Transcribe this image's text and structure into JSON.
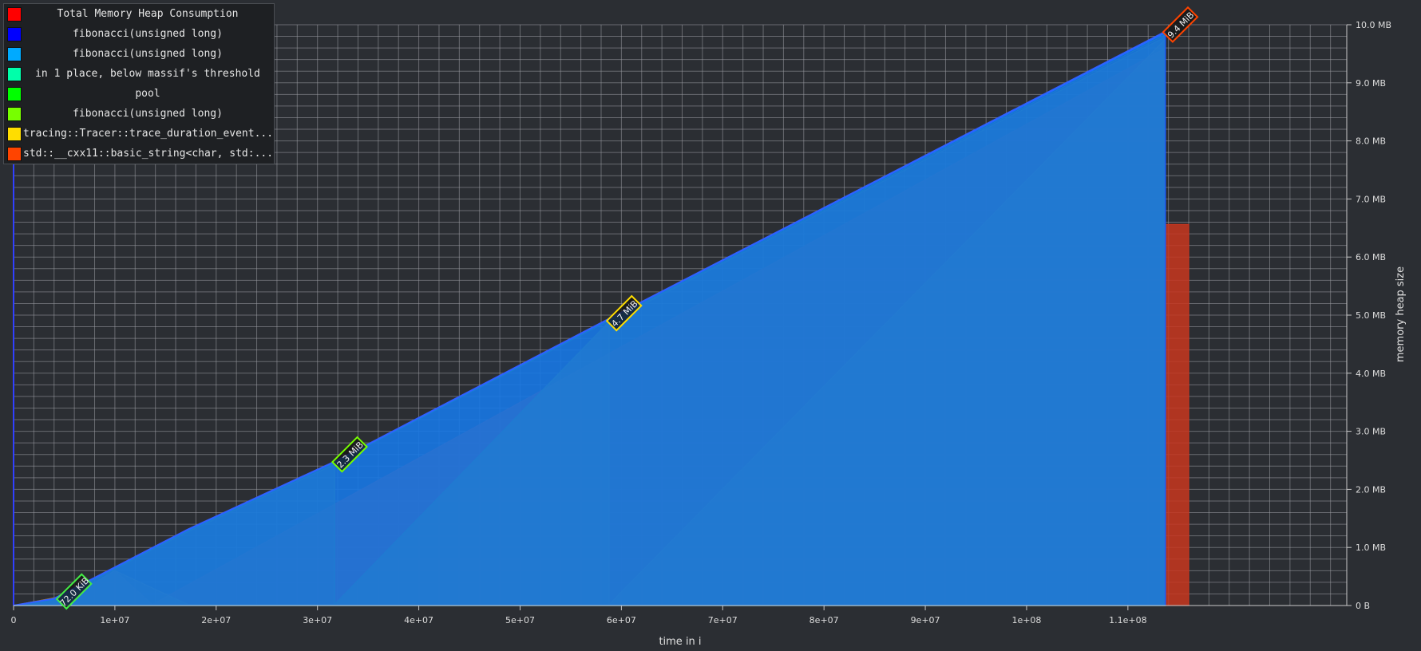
{
  "chart_data": {
    "type": "area",
    "xlabel": "time in i",
    "ylabel": "memory heap size",
    "xlim": [
      0,
      115000000
    ],
    "ylim": [
      0,
      10
    ],
    "x_ticks": [
      {
        "value": 0,
        "label": "0"
      },
      {
        "value": 10000000,
        "label": "1e+07"
      },
      {
        "value": 20000000,
        "label": "2e+07"
      },
      {
        "value": 30000000,
        "label": "3e+07"
      },
      {
        "value": 40000000,
        "label": "4e+07"
      },
      {
        "value": 50000000,
        "label": "5e+07"
      },
      {
        "value": 60000000,
        "label": "6e+07"
      },
      {
        "value": 70000000,
        "label": "7e+07"
      },
      {
        "value": 80000000,
        "label": "8e+07"
      },
      {
        "value": 90000000,
        "label": "9e+07"
      },
      {
        "value": 100000000,
        "label": "1e+08"
      },
      {
        "value": 110000000,
        "label": "1.1e+08"
      }
    ],
    "y_ticks": [
      {
        "value": 0,
        "label": "0 B"
      },
      {
        "value": 1,
        "label": "1.0 MB"
      },
      {
        "value": 2,
        "label": "2.0 MB"
      },
      {
        "value": 3,
        "label": "3.0 MB"
      },
      {
        "value": 4,
        "label": "4.0 MB"
      },
      {
        "value": 5,
        "label": "5.0 MB"
      },
      {
        "value": 6,
        "label": "6.0 MB"
      },
      {
        "value": 7,
        "label": "7.0 MB"
      },
      {
        "value": 8,
        "label": "8.0 MB"
      },
      {
        "value": 9,
        "label": "9.0 MB"
      },
      {
        "value": 10,
        "label": "10.0 MB"
      }
    ],
    "grid": true,
    "legend_position": "top-left",
    "legend": [
      {
        "label": "Total Memory Heap Consumption",
        "color": "#ff0000"
      },
      {
        "label": "fibonacci(unsigned long)",
        "color": "#0000ff"
      },
      {
        "label": "fibonacci(unsigned long)",
        "color": "#00aaff"
      },
      {
        "label": "in 1 place, below massif's threshold",
        "color": "#00ffaa"
      },
      {
        "label": "pool",
        "color": "#00ff00"
      },
      {
        "label": "fibonacci(unsigned long)",
        "color": "#77ff00"
      },
      {
        "label": "tracing::Tracer::trace_duration_event...",
        "color": "#ffdd00"
      },
      {
        "label": "std::__cxx11::basic_string<char, std:...",
        "color": "#ff4400"
      }
    ],
    "layers": [
      {
        "name": "std::__cxx11::basic_string<char, std:...",
        "color": "#c8361f",
        "points": [
          [
            0,
            0
          ],
          [
            6100000,
            0.2
          ],
          [
            10000000,
            0.6
          ],
          [
            13700000,
            0.02
          ],
          [
            113700000,
            9.6
          ],
          [
            113700000,
            6.56
          ],
          [
            116000000,
            6.56
          ]
        ]
      },
      {
        "name": "tracing::Tracer::trace_duration_event...",
        "color": "#b58a12",
        "points": [
          [
            0,
            0
          ],
          [
            6100000,
            0.2
          ],
          [
            10000000,
            0.6
          ],
          [
            17200000,
            0.02
          ],
          [
            31700000,
            0.02
          ],
          [
            58800000,
            4.89
          ],
          [
            58800000,
            0.02
          ],
          [
            113700000,
            9.75
          ]
        ]
      },
      {
        "name": "fibonacci(unsigned long)",
        "color": "#62a020",
        "points": [
          [
            0,
            0
          ],
          [
            4000000,
            0.1
          ],
          [
            10000000,
            0.63
          ],
          [
            17200000,
            1.27
          ],
          [
            31700000,
            2.43
          ],
          [
            31700000,
            0.02
          ],
          [
            58800000,
            4.89
          ],
          [
            113700000,
            9.79
          ]
        ]
      },
      {
        "name": "pool",
        "color": "#22c820",
        "points": [
          [
            0,
            0
          ],
          [
            4000000,
            0.1
          ],
          [
            10000000,
            0.64
          ],
          [
            17200000,
            1.29
          ],
          [
            31700000,
            2.46
          ],
          [
            58800000,
            4.91
          ],
          [
            113700000,
            9.83
          ]
        ]
      },
      {
        "name": "fibonacci(unsigned long)",
        "color": "#00aaff",
        "points": [
          [
            0,
            0
          ],
          [
            4000000,
            0.11
          ],
          [
            10000000,
            0.65
          ],
          [
            17200000,
            1.3
          ],
          [
            31700000,
            2.47
          ],
          [
            58800000,
            4.93
          ],
          [
            113700000,
            9.86
          ]
        ]
      },
      {
        "name": "fibonacci(unsigned long)",
        "color": "#2050ff",
        "points": [
          [
            0,
            0
          ],
          [
            4000000,
            0.12
          ],
          [
            10000000,
            0.66
          ],
          [
            17200000,
            1.31
          ],
          [
            31700000,
            2.48
          ],
          [
            58800000,
            4.94
          ],
          [
            113700000,
            9.88
          ]
        ]
      }
    ],
    "peak_markers": [
      {
        "x": 4500000,
        "y": 0.1,
        "label": "72.0 KiB",
        "color": "#44ee44"
      },
      {
        "x": 31700000,
        "y": 2.46,
        "label": "2.3 MiB",
        "color": "#77ff00"
      },
      {
        "x": 58800000,
        "y": 4.89,
        "label": "4.7 MiB",
        "color": "#ffdd00"
      },
      {
        "x": 113700000,
        "y": 9.86,
        "label": "9.4 MiB",
        "color": "#ff4400"
      }
    ]
  }
}
